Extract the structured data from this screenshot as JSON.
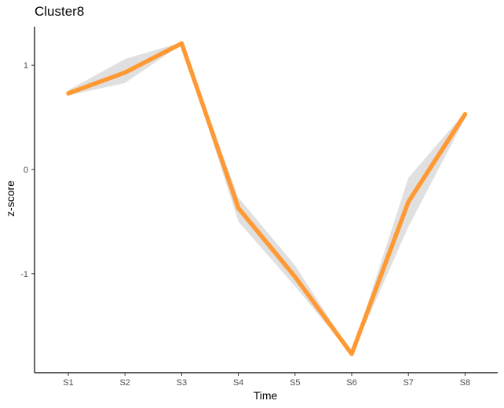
{
  "chart_data": {
    "type": "line",
    "title": "Cluster8",
    "xlabel": "Time",
    "ylabel": "z-score",
    "categories": [
      "S1",
      "S2",
      "S3",
      "S4",
      "S5",
      "S6",
      "S7",
      "S8"
    ],
    "yticks": [
      -1,
      0,
      1
    ],
    "ylim": [
      -1.95,
      1.37
    ],
    "grid": false,
    "legend": "none",
    "series": [
      {
        "values": [
          0.73,
          0.93,
          1.21,
          -0.37,
          -1.03,
          -1.77,
          -0.31,
          0.53
        ],
        "color": "#FF9933"
      }
    ],
    "band": {
      "lower": [
        0.71,
        0.83,
        1.2,
        -0.5,
        -1.12,
        -1.78,
        -0.55,
        0.49
      ],
      "upper": [
        0.76,
        1.06,
        1.22,
        -0.27,
        -0.92,
        -1.76,
        -0.08,
        0.55
      ],
      "color": "#E0E0E0"
    }
  }
}
